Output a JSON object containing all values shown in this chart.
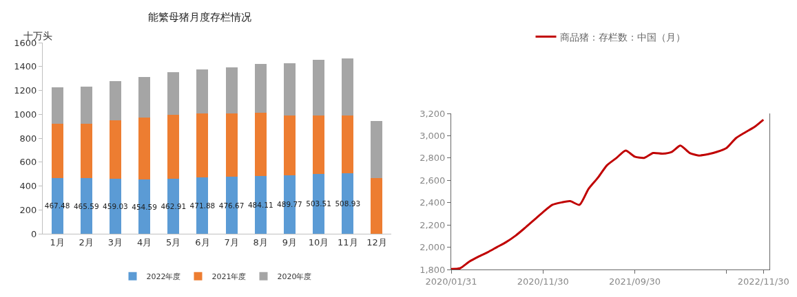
{
  "chart_data": [
    {
      "type": "bar",
      "title": "能繁母猪月度存栏情况",
      "ylabel": "十万头",
      "stacked": true,
      "legend": "bottom",
      "categories": [
        "1月",
        "2月",
        "3月",
        "4月",
        "5月",
        "6月",
        "7月",
        "8月",
        "9月",
        "10月",
        "11月",
        "12月"
      ],
      "ylim": [
        0,
        1600
      ],
      "yticks": [
        0,
        200,
        400,
        600,
        800,
        1000,
        1200,
        1400,
        1600
      ],
      "series": [
        {
          "name": "2022年度",
          "color": "#5b9bd5",
          "values": [
            467.48,
            465.59,
            459.03,
            454.59,
            462.91,
            471.88,
            476.67,
            484.11,
            489.77,
            503.51,
            508.93,
            null
          ],
          "value_labels": [
            "467.48",
            "465.59",
            "459.03",
            "454.59",
            "462.91",
            "471.88",
            "476.67",
            "484.11",
            "489.77",
            "503.51",
            "508.93",
            null
          ]
        },
        {
          "name": "2021年度",
          "color": "#ed7d31",
          "values": [
            455,
            456,
            491,
            520,
            532,
            533,
            528,
            526,
            500,
            486,
            481,
            465
          ]
        },
        {
          "name": "2020年度",
          "color": "#a5a5a5",
          "values": [
            306,
            310,
            325,
            337,
            357,
            373,
            388,
            414,
            438,
            466,
            475,
            480
          ]
        }
      ]
    },
    {
      "type": "line",
      "legend": "top",
      "marker": "none",
      "line_style": "solid",
      "x": [
        "2020-01-31",
        "2020-02-29",
        "2020-03-31",
        "2020-04-30",
        "2020-05-31",
        "2020-06-30",
        "2020-07-31",
        "2020-08-31",
        "2020-09-30",
        "2020-10-31",
        "2020-11-30",
        "2020-12-31",
        "2021-01-31",
        "2021-02-28",
        "2021-03-31",
        "2021-04-30",
        "2021-05-31",
        "2021-06-30",
        "2021-07-31",
        "2021-08-31",
        "2021-09-30",
        "2021-10-31",
        "2021-11-30",
        "2021-12-31",
        "2022-01-31",
        "2022-02-28",
        "2022-03-31",
        "2022-04-30",
        "2022-05-31",
        "2022-06-30",
        "2022-07-31",
        "2022-08-31",
        "2022-09-30",
        "2022-10-31",
        "2022-11-30"
      ],
      "xlim": [
        "2020-01-31",
        "2022-12-20"
      ],
      "xticks": [
        {
          "value": "2020-01-31",
          "label": "2020/01/31"
        },
        {
          "value": "2020-11-30",
          "label": "2020/11/30"
        },
        {
          "value": "2021-09-30",
          "label": "2021/09/30"
        },
        {
          "value": "2022-07-31",
          "label": null
        },
        {
          "value": "2022-11-30",
          "label": "2022/11/30"
        }
      ],
      "ylim": [
        1800,
        3200
      ],
      "yticks": [
        {
          "value": 1800,
          "label": "1,800"
        },
        {
          "value": 2000,
          "label": "2,000"
        },
        {
          "value": 2200,
          "label": "2,200"
        },
        {
          "value": 2400,
          "label": "2,400"
        },
        {
          "value": 2600,
          "label": "2,600"
        },
        {
          "value": 2800,
          "label": "2,800"
        },
        {
          "value": 3000,
          "label": "3,000"
        },
        {
          "value": 3200,
          "label": "3,200"
        }
      ],
      "series": [
        {
          "name": "商品猪：存栏数：中国（月）",
          "color": "#c00000",
          "values": [
            1805,
            1811,
            1871,
            1915,
            1955,
            2000,
            2046,
            2103,
            2170,
            2243,
            2314,
            2380,
            2402,
            2413,
            2380,
            2524,
            2624,
            2735,
            2800,
            2867,
            2812,
            2801,
            2845,
            2839,
            2856,
            2912,
            2845,
            2823,
            2834,
            2856,
            2890,
            2978,
            3029,
            3078,
            3144
          ]
        }
      ]
    }
  ]
}
